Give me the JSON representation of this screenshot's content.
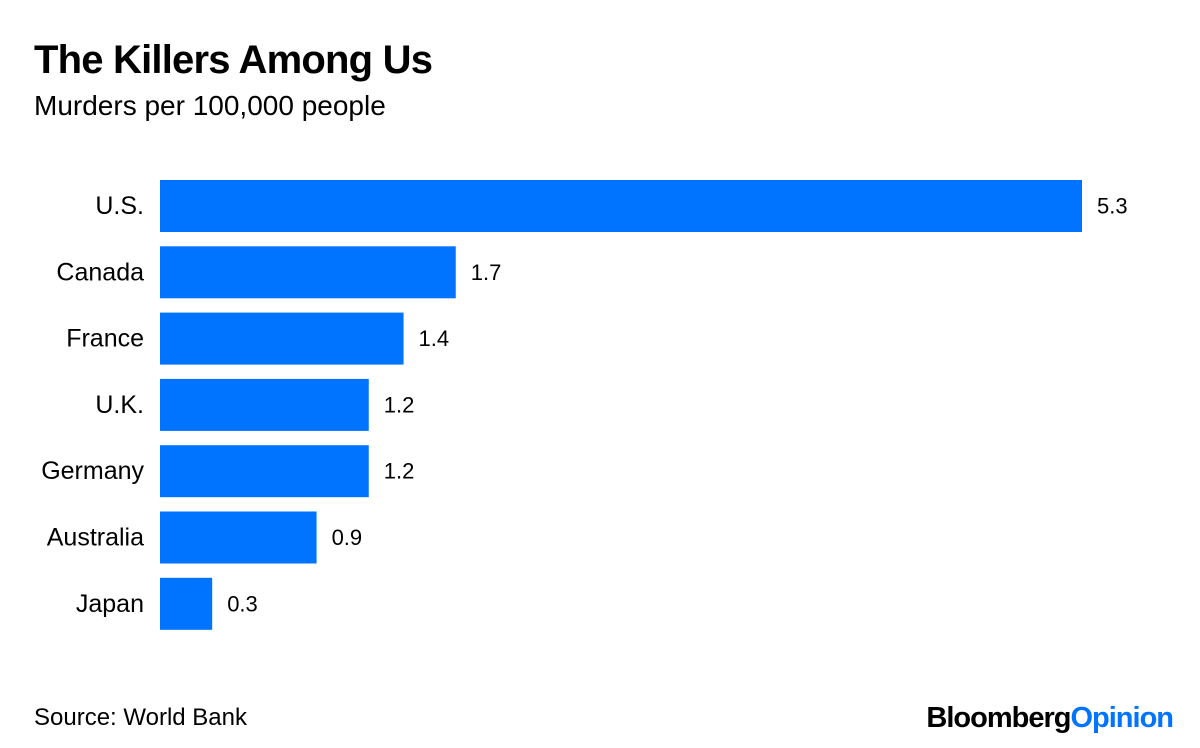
{
  "chart_data": {
    "type": "bar",
    "orientation": "horizontal",
    "title": "The Killers Among Us",
    "subtitle": "Murders per 100,000 people",
    "categories": [
      "U.S.",
      "Canada",
      "France",
      "U.K.",
      "Germany",
      "Australia",
      "Japan"
    ],
    "values": [
      5.3,
      1.7,
      1.4,
      1.2,
      1.2,
      0.9,
      0.3
    ],
    "value_labels": [
      "5.3",
      "1.7",
      "1.4",
      "1.2",
      "1.2",
      "0.9",
      "0.3"
    ],
    "xlabel": "",
    "ylabel": "",
    "xlim": [
      0,
      5.3
    ],
    "grid": false,
    "legend": "none",
    "bar_color": "#0073ff"
  },
  "footer": {
    "source": "Source: World Bank",
    "brand_primary": "Bloomberg",
    "brand_accent": "Opinion",
    "brand_accent_color": "#0073ff"
  }
}
